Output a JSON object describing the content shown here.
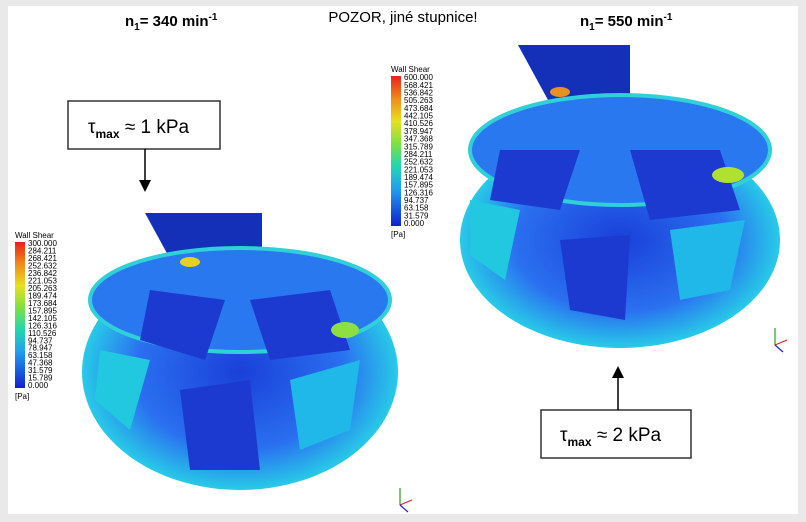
{
  "header": {
    "left": {
      "symbol": "n",
      "sub": "1",
      "rest": "= 340 min",
      "sup": "-1"
    },
    "center": "POZOR, jiné stupnice!",
    "right": {
      "symbol": "n",
      "sub": "1",
      "rest": "= 550 min",
      "sup": "-1"
    }
  },
  "callouts": [
    {
      "symbol": "τ",
      "sub": "max",
      "rest": " ≈ 1 kPa"
    },
    {
      "symbol": "τ",
      "sub": "max",
      "rest": " ≈ 2 kPa"
    }
  ],
  "legends": [
    {
      "title": "Wall Shear",
      "unit": "[Pa]",
      "values": [
        "300.000",
        "284.211",
        "268.421",
        "252.632",
        "236.842",
        "221.053",
        "205.263",
        "189.474",
        "173.684",
        "157.895",
        "142.105",
        "126.316",
        "110.526",
        "94.737",
        "78.947",
        "63.158",
        "47.368",
        "31.579",
        "15.789",
        "0.000"
      ]
    },
    {
      "title": "Wall Shear",
      "unit": "[Pa]",
      "values": [
        "600.000",
        "568.421",
        "536.842",
        "505.263",
        "473.684",
        "442.105",
        "410.526",
        "378.947",
        "347.368",
        "315.789",
        "284.211",
        "252.632",
        "221.053",
        "189.474",
        "157.895",
        "126.316",
        "94.737",
        "63.158",
        "31.579",
        "0.000"
      ]
    }
  ]
}
